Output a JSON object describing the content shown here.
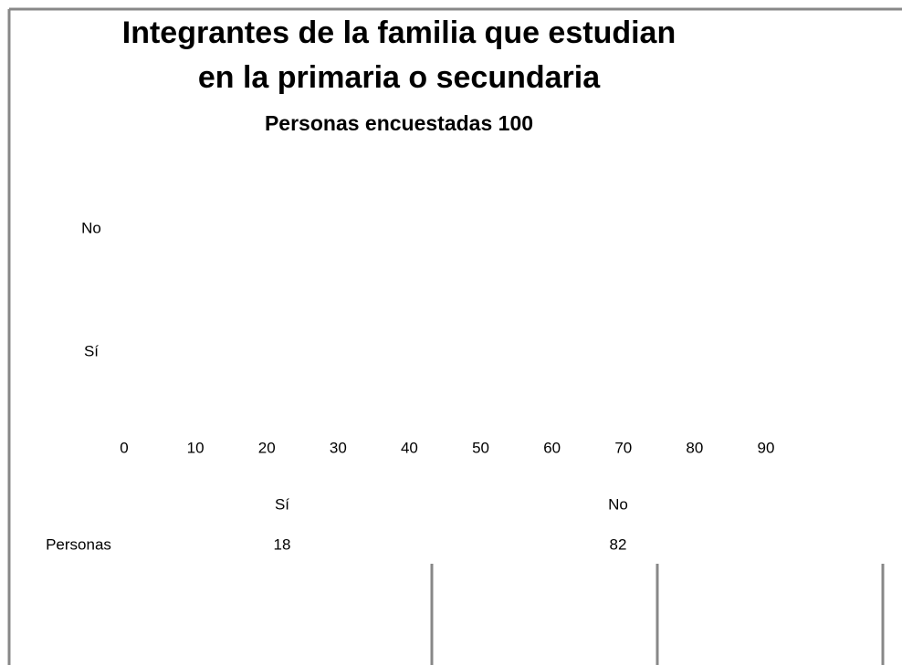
{
  "chart_data": {
    "type": "bar",
    "orientation": "horizontal",
    "title": [
      "Integrantes de la familia que estudian",
      "en la primaria o secundaria"
    ],
    "subtitle": "Personas encuestadas 100",
    "categories": [
      "Sí",
      "No"
    ],
    "series": [
      {
        "name": "Personas",
        "values": [
          18,
          82
        ]
      }
    ],
    "xlim": [
      0,
      90
    ],
    "xticks": [
      0,
      10,
      20,
      30,
      40,
      50,
      60,
      70,
      80,
      90
    ]
  }
}
